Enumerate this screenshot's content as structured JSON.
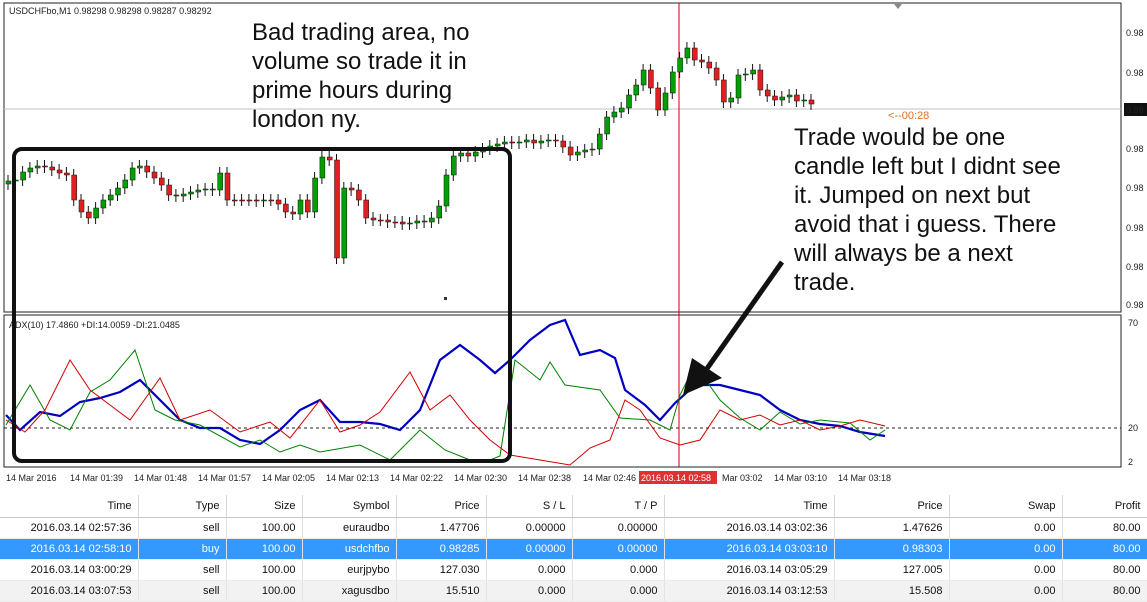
{
  "chart": {
    "symbol_info": "USDCHFbo,M1  0.98298 0.98298 0.98287 0.98292",
    "adx_info": "ADX(10) 17.4860 +DI:14.0059 -DI:21.0485",
    "countdown": "<--00:28",
    "price_labels": [
      "0.98",
      "0.98",
      "0.98",
      "0.98",
      "0.98",
      "0.98",
      "0.98",
      "0.98"
    ],
    "current_price_label": "0.98",
    "adx_levels": [
      "70",
      "20",
      "2"
    ],
    "time_labels": [
      "14 Mar 2016",
      "14 Mar 01:39",
      "14 Mar 01:48",
      "14 Mar 01:57",
      "14 Mar 02:05",
      "14 Mar 02:13",
      "14 Mar 02:22",
      "14 Mar 02:30",
      "14 Mar 02:38",
      "14 Mar 02:46",
      "2016.03.14 02:58",
      "Mar 03:02",
      "14 Mar 03:10",
      "14 Mar 03:18"
    ],
    "colors": {
      "bull": "#00a000",
      "bear": "#e02020",
      "adx": "#0000c0",
      "plus_di": "#008000",
      "minus_di": "#d00000",
      "cursor": "#cc0000"
    }
  },
  "annotations": {
    "note1": "Bad trading area, no\nvolume so trade it in\nprime hours during\nlondon ny.",
    "note2": "Trade would be one\ncandle left but I didnt see\nit. Jumped on next but\navoid that i guess. There\nwill always be a next\ntrade."
  },
  "trades": {
    "headers": [
      "Time",
      "Type",
      "Size",
      "Symbol",
      "Price",
      "S / L",
      "T / P",
      "Time",
      "Price",
      "Swap",
      "Profit"
    ],
    "rows": [
      [
        "2016.03.14 02:57:36",
        "sell",
        "100.00",
        "euraudbo",
        "1.47706",
        "0.00000",
        "0.00000",
        "2016.03.14 03:02:36",
        "1.47626",
        "0.00",
        "80.00"
      ],
      [
        "2016.03.14 02:58:10",
        "buy",
        "100.00",
        "usdchfbo",
        "0.98285",
        "0.00000",
        "0.00000",
        "2016.03.14 03:03:10",
        "0.98303",
        "0.00",
        "80.00"
      ],
      [
        "2016.03.14 03:00:29",
        "sell",
        "100.00",
        "eurjpybo",
        "127.030",
        "0.000",
        "0.000",
        "2016.03.14 03:05:29",
        "127.005",
        "0.00",
        "80.00"
      ],
      [
        "2016.03.14 03:07:53",
        "sell",
        "100.00",
        "xagusdbo",
        "15.510",
        "0.000",
        "0.000",
        "2016.03.14 03:12:53",
        "15.508",
        "0.00",
        "80.00"
      ]
    ]
  }
}
